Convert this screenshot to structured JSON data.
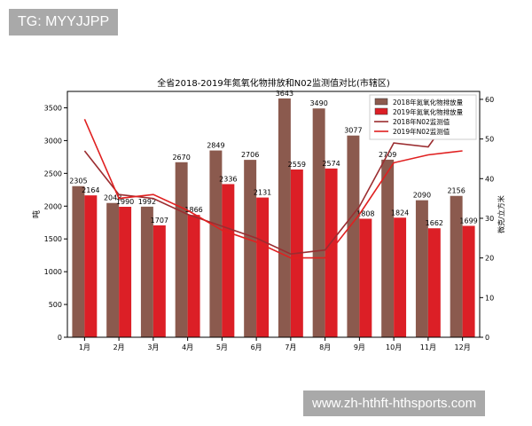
{
  "watermark_top": "TG: MYYJJPP",
  "watermark_bottom": "www.zh-hthft-hthsports.com",
  "chart_data": {
    "type": "bar",
    "title": "全省2018-2019年氮氧化物排放和N02监测值对比(市辖区)",
    "categories": [
      "1月",
      "2月",
      "3月",
      "4月",
      "5月",
      "6月",
      "7月",
      "8月",
      "9月",
      "10月",
      "11月",
      "12月"
    ],
    "series": [
      {
        "name": "2018年氮氧化物排放量",
        "type": "bar",
        "axis": "left",
        "color": "#8b5a4e",
        "values": [
          2305,
          2048,
          1992,
          2670,
          2849,
          2706,
          3643,
          3490,
          3077,
          2709,
          2090,
          2156
        ]
      },
      {
        "name": "2019年氮氧化物排放量",
        "type": "bar",
        "axis": "left",
        "color": "#dc1f26",
        "values": [
          2164,
          1990,
          1707,
          1866,
          2336,
          2131,
          2559,
          2574,
          1808,
          1824,
          1662,
          1699
        ]
      },
      {
        "name": "2018年N02监测值",
        "type": "line",
        "axis": "right",
        "color": "#9b2d30",
        "values": [
          47,
          36,
          35,
          31,
          28,
          25,
          21,
          22,
          33,
          49,
          48,
          60
        ]
      },
      {
        "name": "2019年N02监测值",
        "type": "line",
        "axis": "right",
        "color": "#e02020",
        "values": [
          55,
          35,
          36,
          32,
          27,
          24,
          20,
          20,
          31,
          44,
          46,
          47
        ]
      }
    ],
    "ylabel": "吨",
    "y2label": "微克/立方米",
    "ylim": [
      0,
      3750
    ],
    "y2lim": [
      0,
      62
    ],
    "yticks": [
      0,
      500,
      1000,
      1500,
      2000,
      2500,
      3000,
      3500
    ],
    "y2ticks": [
      0,
      10,
      20,
      30,
      40,
      50,
      60
    ],
    "legend_position": "top-right",
    "grid": false
  }
}
